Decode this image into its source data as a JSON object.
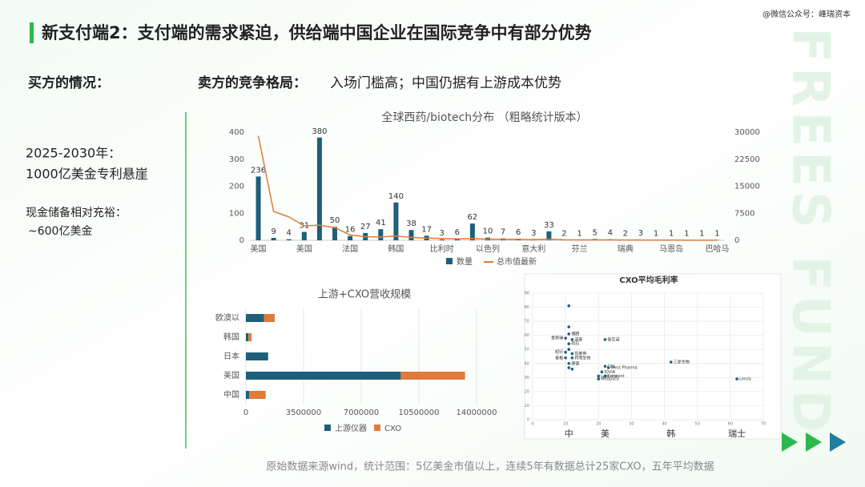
{
  "title": "新支付端2：支付端的需求紧迫，供给端中国企业在国际竞争中有部分优势",
  "watermark": "@微信公众号：峰瑞资本",
  "side_text": "FREES FUND",
  "left_heading": "买方的情况：",
  "left_points": [
    "2025-2030年：",
    "1000亿美金专利悬崖",
    "现金储备相对充裕：",
    "~600亿美金"
  ],
  "right_heading": "卖方的竞争格局：",
  "right_subheading": "入场门槛高；中国仍据有上游成本优势",
  "footnote": "原始数据来源wind，统计范围：5亿美金市值以上，连续5年有数据总计25家CXO，五年平均数据",
  "chart_data": [
    {
      "type": "bar_line",
      "title": "全球西药/biotech分布 （粗略统计版本）",
      "categories": [
        "美国",
        null,
        null,
        "美国",
        null,
        null,
        "法国",
        null,
        null,
        "韩国",
        null,
        null,
        "比利时",
        null,
        null,
        "以色列",
        null,
        null,
        "意大利",
        null,
        null,
        "芬兰",
        null,
        null,
        "瑞典",
        null,
        null,
        "马恩岛",
        null,
        null,
        "巴哈马"
      ],
      "series": [
        {
          "name": "数量",
          "color": "#1f5f7a",
          "values": [
            236,
            9,
            4,
            31,
            380,
            50,
            16,
            27,
            41,
            140,
            38,
            17,
            3,
            6,
            62,
            10,
            7,
            6,
            3,
            33,
            2,
            1,
            5,
            4,
            2,
            3,
            1,
            1,
            1,
            1,
            1
          ]
        },
        {
          "name": "总市值最新",
          "color": "#e07b39",
          "axis": "y2",
          "values": [
            29000,
            8000,
            6500,
            4000,
            4200,
            3500,
            1500,
            1000,
            900,
            1200,
            800,
            600,
            500,
            400,
            500,
            300,
            300,
            250,
            200,
            300,
            150,
            100,
            120,
            100,
            80,
            80,
            50,
            50,
            40,
            30,
            20
          ]
        }
      ],
      "ylim": [
        0,
        400
      ],
      "yticks": [
        0,
        100,
        200,
        300,
        400
      ],
      "y2lim": [
        0,
        30000
      ],
      "y2ticks": [
        0,
        7500,
        15000,
        22500,
        30000
      ]
    },
    {
      "type": "stacked_hbar",
      "title": "上游+CXO营收规模",
      "categories": [
        "欧澳以",
        "韩国",
        "日本",
        "美国",
        "中国"
      ],
      "series": [
        {
          "name": "上游仪器",
          "color": "#1f5f7a",
          "values": [
            1100000,
            150000,
            1350000,
            9400000,
            200000
          ]
        },
        {
          "name": "CXO",
          "color": "#e07b39",
          "values": [
            650000,
            200000,
            0,
            3900000,
            1000000
          ]
        }
      ],
      "xlim": [
        0,
        14000000
      ],
      "xticks": [
        0,
        3500000,
        7000000,
        10500000,
        14000000
      ],
      "grid": true
    },
    {
      "type": "scatter",
      "title": "CXO平均毛利率",
      "color": "#1f5f7a",
      "x": [
        11,
        11,
        11,
        10,
        12,
        22,
        11,
        11,
        10,
        12,
        10,
        12,
        11,
        11,
        12,
        22,
        23,
        21,
        20,
        20,
        22,
        42,
        62
      ],
      "y": [
        81,
        66,
        61,
        58,
        57,
        57,
        54,
        50,
        48,
        47,
        44,
        44,
        40,
        37,
        36,
        38,
        37,
        34,
        31,
        29,
        31,
        41,
        29
      ],
      "labels": [
        null,
        null,
        "博腾",
        "金斯瑞",
        "诺泰",
        "泰定诺",
        "药石",
        null,
        "昭衍",
        "凯莱英",
        "泰格",
        "药明生物",
        "康德",
        null,
        null,
        "CRL",
        "West Pharma",
        "IQVIA",
        "Labcorp",
        "Medpace",
        "Catalent",
        "三星生物",
        "Lonza"
      ],
      "group_labels": [
        {
          "x": 11,
          "label": "中"
        },
        {
          "x": 22,
          "label": "美"
        },
        {
          "x": 42,
          "label": "韩"
        },
        {
          "x": 62,
          "label": "瑞士"
        }
      ],
      "xlim": [
        0,
        70
      ],
      "xticks": [
        0,
        10,
        20,
        30,
        40,
        50,
        60,
        70
      ],
      "ylim": [
        0,
        90
      ],
      "yticks": [
        0,
        10,
        20,
        30,
        40,
        50,
        60,
        70,
        80,
        90
      ],
      "grid": true
    }
  ]
}
